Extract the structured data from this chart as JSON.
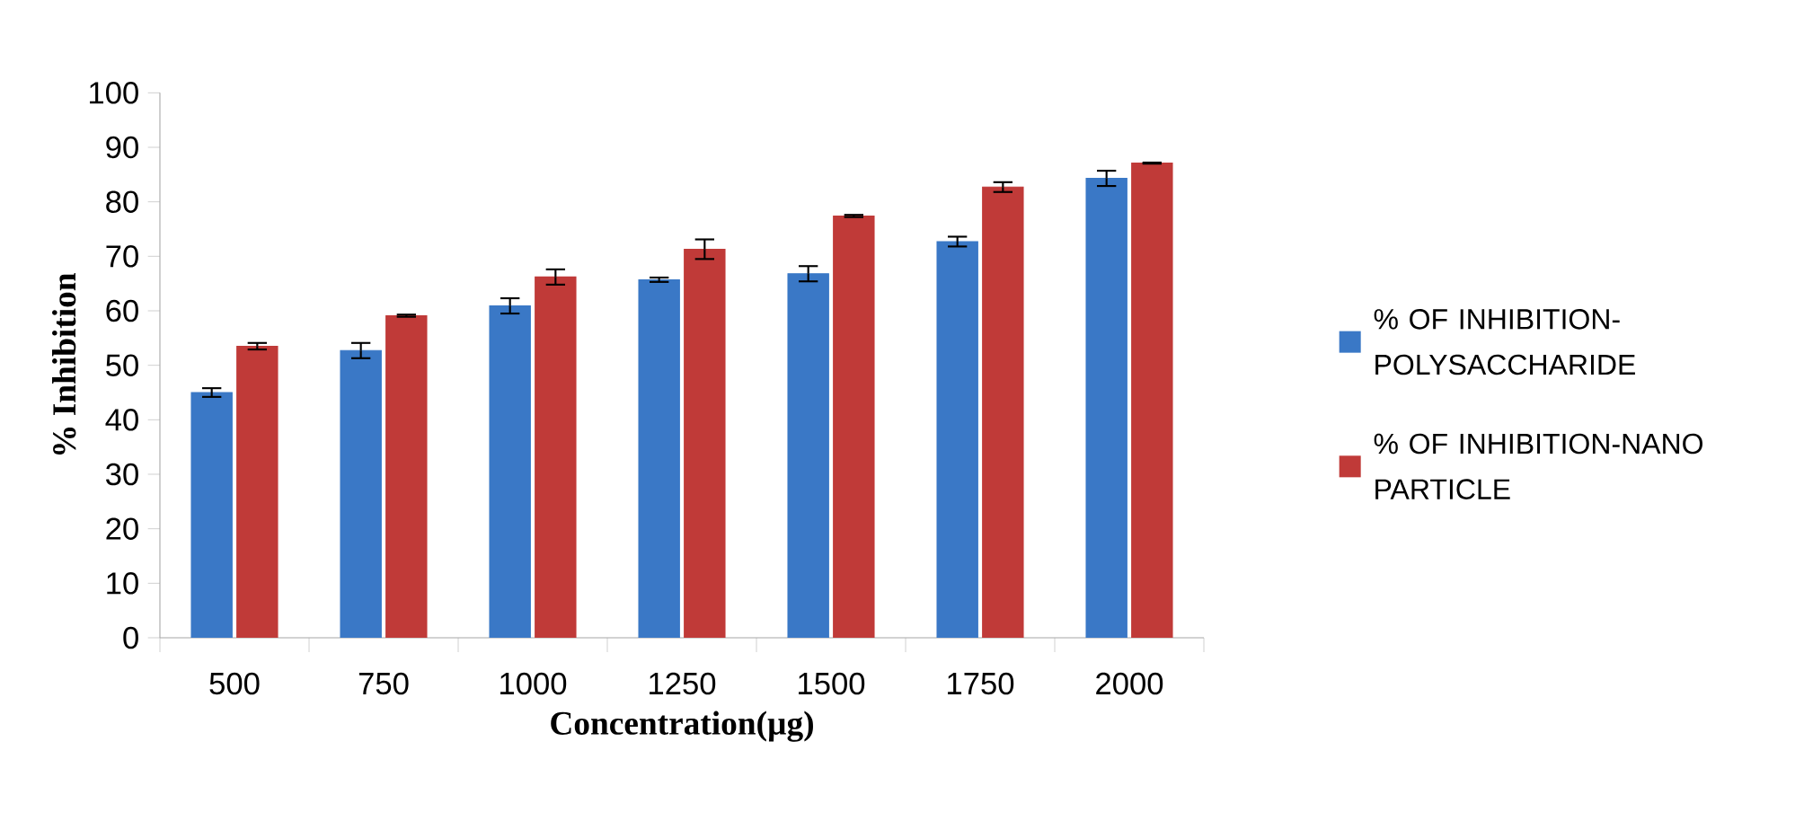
{
  "chart_data": {
    "type": "bar",
    "xlabel": "Concentration(µg)",
    "ylabel": "% Inhibition",
    "categories": [
      "500",
      "750",
      "1000",
      "1250",
      "1500",
      "1750",
      "2000"
    ],
    "series": [
      {
        "name": "% OF INHIBITION-POLYSACCHARIDE",
        "color": "#3a78c6",
        "values": [
          45.0,
          52.7,
          60.9,
          65.7,
          66.8,
          72.7,
          84.3
        ],
        "errors": [
          0.8,
          1.4,
          1.4,
          0.4,
          1.4,
          0.9,
          1.4
        ]
      },
      {
        "name": "% OF INHIBITION-NANO PARTICLE",
        "color": "#c03a38",
        "values": [
          53.5,
          59.1,
          66.2,
          71.3,
          77.4,
          82.7,
          87.1
        ],
        "errors": [
          0.6,
          0.2,
          1.4,
          1.8,
          0.2,
          0.9,
          0.1
        ]
      }
    ],
    "ylim": [
      0,
      100
    ],
    "yticks": [
      0,
      10,
      20,
      30,
      40,
      50,
      60,
      70,
      80,
      90,
      100
    ],
    "grid": false,
    "legend": "right"
  }
}
